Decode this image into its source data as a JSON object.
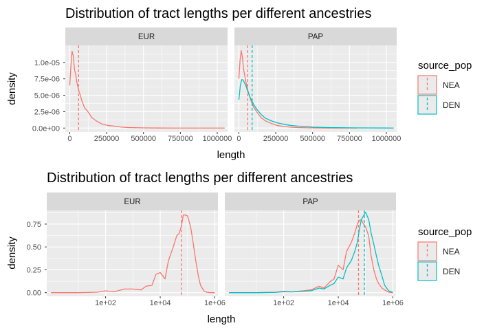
{
  "colors": {
    "NEA": "#F8766D",
    "DEN": "#00BFC4",
    "panel_bg": "#EBEBEB",
    "strip_bg": "#D9D9D9",
    "grid": "#FFFFFF",
    "text": "#1A1A1A",
    "tick_text": "#4D4D4D"
  },
  "chart_data": [
    {
      "type": "line",
      "subtype": "density",
      "title": "Distribution of tract lengths per different ancestries",
      "xlabel": "length",
      "ylabel": "density",
      "x_scale": "linear",
      "xlim": [
        -30000,
        1070000
      ],
      "ylim": [
        -6e-07,
        1.26e-05
      ],
      "x_ticks": [
        0,
        250000,
        500000,
        750000,
        1000000
      ],
      "x_tick_labels": [
        "0",
        "250000",
        "500000",
        "750000",
        "1000000"
      ],
      "y_ticks": [
        0,
        2.5e-06,
        5e-06,
        7.5e-06,
        1e-05
      ],
      "y_tick_labels": [
        "0.0e+00",
        "2.5e-06",
        "5.0e-06",
        "7.5e-06",
        "1.0e-05"
      ],
      "grid": true,
      "legend": {
        "title": "source_pop",
        "placement": "right",
        "entries": [
          "NEA",
          "DEN"
        ]
      },
      "panels": [
        {
          "label": "EUR",
          "series": [
            {
              "name": "NEA",
              "mean": 60000,
              "x": [
                0,
                8000,
                16000,
                24000,
                32000,
                40000,
                48000,
                56000,
                64000,
                72000,
                80000,
                100000,
                120000,
                150000,
                180000,
                220000,
                260000,
                300000,
                350000,
                400000,
                500000,
                600000,
                800000,
                1000000,
                1050000
              ],
              "y": [
                6.5e-06,
                9.5e-06,
                1.17e-05,
                1.1e-05,
                9e-06,
                8.2e-06,
                7e-06,
                6.2e-06,
                5.5e-06,
                5e-06,
                4.3e-06,
                3.1e-06,
                2.6e-06,
                1.6e-06,
                1.1e-06,
                6e-07,
                4e-07,
                3e-07,
                1.5e-07,
                8e-08,
                3e-08,
                1e-08,
                0,
                0,
                0
              ]
            }
          ]
        },
        {
          "label": "PAP",
          "series": [
            {
              "name": "NEA",
              "mean": 60000,
              "x": [
                0,
                8000,
                16000,
                24000,
                32000,
                40000,
                48000,
                56000,
                64000,
                72000,
                80000,
                100000,
                120000,
                150000,
                180000,
                220000,
                260000,
                300000,
                350000,
                400000,
                500000,
                600000,
                800000
              ],
              "y": [
                7.5e-06,
                1.03e-05,
                1.18e-05,
                1.08e-05,
                9e-06,
                8e-06,
                7e-06,
                6.2e-06,
                5.5e-06,
                5e-06,
                4.3e-06,
                3.2e-06,
                2.5e-06,
                1.6e-06,
                1.1e-06,
                7e-07,
                4e-07,
                2.5e-07,
                1.3e-07,
                8e-08,
                3e-08,
                1e-08,
                0
              ]
            },
            {
              "name": "DEN",
              "mean": 90000,
              "x": [
                0,
                10000,
                20000,
                30000,
                40000,
                50000,
                60000,
                70000,
                80000,
                90000,
                100000,
                120000,
                150000,
                180000,
                220000,
                260000,
                300000,
                350000,
                400000,
                500000,
                600000,
                800000,
                1000000,
                1050000
              ],
              "y": [
                4.3e-06,
                6.5e-06,
                7.4e-06,
                7.3e-06,
                6.8e-06,
                6.3e-06,
                5.6e-06,
                5e-06,
                4.5e-06,
                4.1e-06,
                3.6e-06,
                2.9e-06,
                2.1e-06,
                1.5e-06,
                1.1e-06,
                8e-07,
                6e-07,
                4e-07,
                3e-07,
                1.5e-07,
                8e-08,
                3e-08,
                1e-08,
                0
              ]
            }
          ]
        }
      ]
    },
    {
      "type": "line",
      "subtype": "density",
      "title": "Distribution of tract lengths per different ancestries",
      "xlabel": "length",
      "ylabel": "density",
      "x_scale": "log10",
      "xlim": [
        0.7,
        1300000.0
      ],
      "ylim": [
        -0.04,
        0.9
      ],
      "x_ticks": [
        100,
        10000,
        1000000
      ],
      "x_tick_labels": [
        "1e+02",
        "1e+04",
        "1e+06"
      ],
      "y_ticks": [
        0,
        0.25,
        0.5,
        0.75
      ],
      "y_tick_labels": [
        "0.00",
        "0.25",
        "0.50",
        "0.75"
      ],
      "grid": true,
      "legend": {
        "title": "source_pop",
        "placement": "right",
        "entries": [
          "NEA",
          "DEN"
        ]
      },
      "panels": [
        {
          "label": "EUR",
          "series": [
            {
              "name": "NEA",
              "mean": 60000,
              "x": [
                1,
                10,
                50,
                100,
                200,
                500,
                1000,
                2000,
                3000,
                5000,
                7000,
                10000,
                15000,
                20000,
                30000,
                40000,
                50000,
                60000,
                70000,
                80000,
                100000,
                130000,
                160000,
                200000,
                250000,
                300000,
                400000,
                500000,
                700000,
                1000000
              ],
              "y": [
                0,
                0,
                0.005,
                0.02,
                0.01,
                0.04,
                0.04,
                0.03,
                0.07,
                0.08,
                0.2,
                0.22,
                0.15,
                0.35,
                0.5,
                0.62,
                0.65,
                0.73,
                0.85,
                0.85,
                0.84,
                0.72,
                0.55,
                0.35,
                0.18,
                0.08,
                0.02,
                0.005,
                0,
                0
              ]
            }
          ]
        },
        {
          "label": "PAP",
          "series": [
            {
              "name": "NEA",
              "mean": 55000,
              "x": [
                1,
                10,
                50,
                100,
                200,
                500,
                1000,
                2000,
                3000,
                5000,
                7000,
                10000,
                15000,
                20000,
                30000,
                40000,
                50000,
                60000,
                70000,
                80000,
                100000,
                130000,
                160000,
                200000,
                250000,
                300000,
                400000,
                500000,
                700000,
                1000000
              ],
              "y": [
                0,
                0,
                0.005,
                0.015,
                0.01,
                0.02,
                0.03,
                0.07,
                0.05,
                0.12,
                0.15,
                0.3,
                0.25,
                0.45,
                0.55,
                0.65,
                0.75,
                0.79,
                0.8,
                0.76,
                0.72,
                0.62,
                0.4,
                0.25,
                0.15,
                0.1,
                0.05,
                0.03,
                0.005,
                0
              ]
            },
            {
              "name": "DEN",
              "mean": 90000,
              "x": [
                1,
                10,
                50,
                100,
                200,
                500,
                1000,
                2000,
                3000,
                5000,
                7000,
                10000,
                15000,
                20000,
                30000,
                40000,
                50000,
                60000,
                70000,
                80000,
                100000,
                130000,
                160000,
                200000,
                250000,
                300000,
                400000,
                500000,
                700000,
                1000000
              ],
              "y": [
                0,
                0,
                0.003,
                0.01,
                0.008,
                0.015,
                0.02,
                0.05,
                0.04,
                0.08,
                0.1,
                0.17,
                0.15,
                0.27,
                0.35,
                0.45,
                0.55,
                0.7,
                0.8,
                0.83,
                0.88,
                0.8,
                0.65,
                0.53,
                0.4,
                0.3,
                0.18,
                0.08,
                0.02,
                0.003
              ]
            }
          ]
        }
      ]
    }
  ]
}
